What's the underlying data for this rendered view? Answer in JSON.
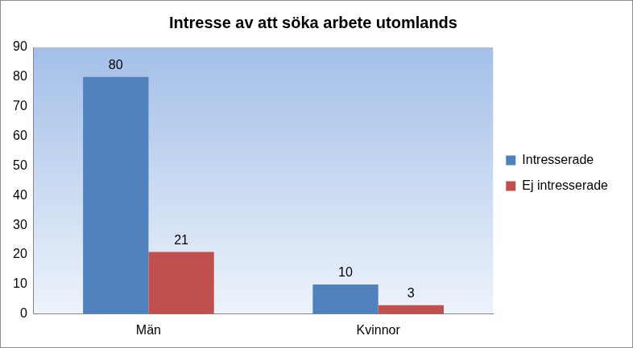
{
  "chart_data": {
    "type": "bar",
    "title": "Intresse av att söka arbete utomlands",
    "categories": [
      "Män",
      "Kvinnor"
    ],
    "series": [
      {
        "name": "Intresserade",
        "color": "#4f81bd",
        "values": [
          80,
          10
        ]
      },
      {
        "name": "Ej intresserade",
        "color": "#c0504d",
        "values": [
          21,
          3
        ]
      }
    ],
    "ylim": [
      0,
      90
    ],
    "yticks": [
      0,
      10,
      20,
      30,
      40,
      50,
      60,
      70,
      80,
      90
    ],
    "grid": false,
    "legend": "right",
    "data_labels": true
  }
}
